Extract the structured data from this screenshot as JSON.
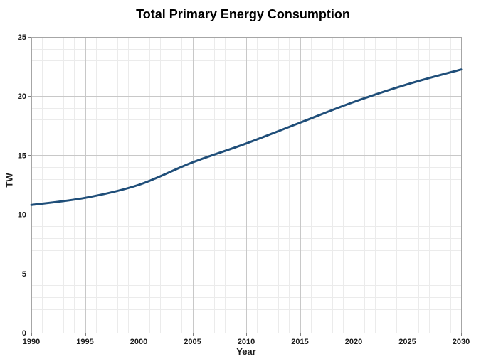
{
  "chart_data": {
    "type": "line",
    "title": "Total Primary Energy Consumption",
    "xlabel": "Year",
    "ylabel": "TW",
    "xlim": [
      1990,
      2030
    ],
    "ylim": [
      0,
      25
    ],
    "xticks": [
      1990,
      1995,
      2000,
      2005,
      2010,
      2015,
      2020,
      2025,
      2030
    ],
    "yticks": [
      0,
      5,
      10,
      15,
      20,
      25
    ],
    "minor_x_step": 1,
    "minor_y_step": 1,
    "grid": "major and minor gridlines on",
    "legend": "none",
    "series": [
      {
        "name": "Total Primary Energy Consumption",
        "color": "#1F4E79",
        "x": [
          1990,
          1995,
          2000,
          2005,
          2010,
          2015,
          2020,
          2025,
          2030
        ],
        "y": [
          10.8,
          11.4,
          12.5,
          14.4,
          16.0,
          17.75,
          19.5,
          21.0,
          22.25
        ]
      }
    ]
  }
}
